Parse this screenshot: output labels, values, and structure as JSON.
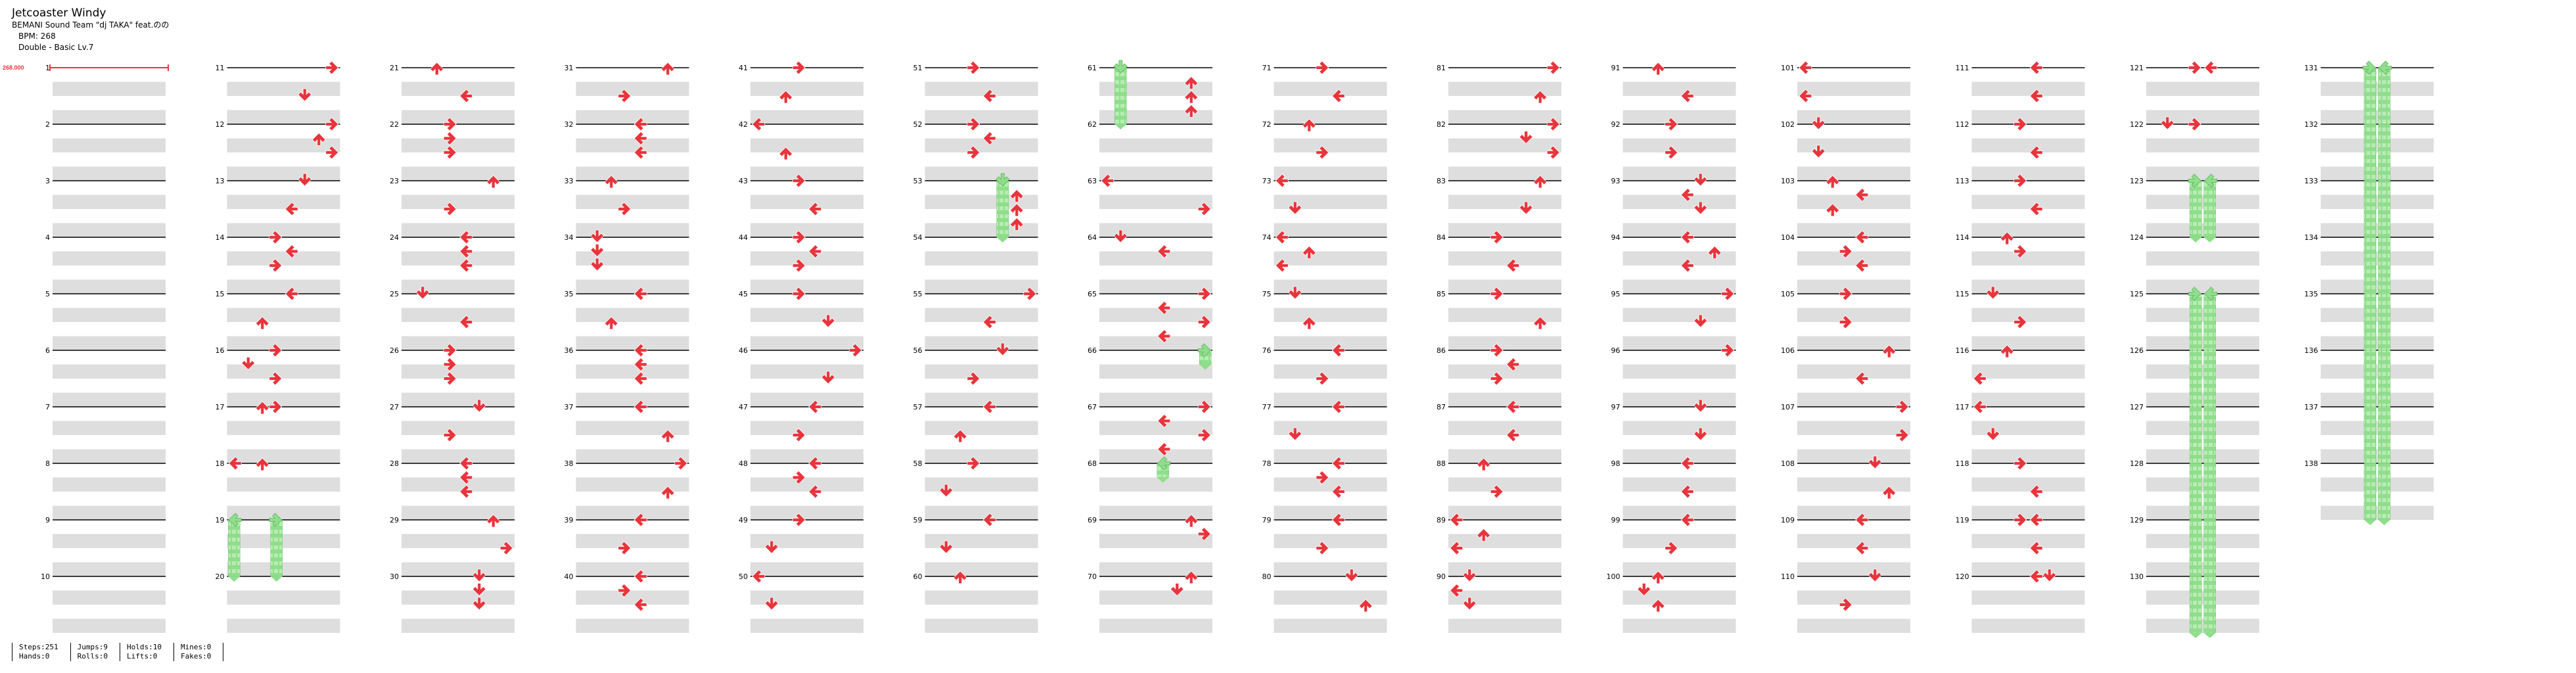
{
  "song": {
    "title": "Jetcoaster Windy",
    "artist": "BEMANI Sound Team \"dj TAKA\" feat.のの",
    "bpm_label": "BPM: 268",
    "difficulty": "Double - Basic  Lv.7"
  },
  "bpm_marker": "268.000",
  "stats": [
    {
      "lines": [
        "Steps:251",
        "Hands:0"
      ]
    },
    {
      "lines": [
        "Jumps:9",
        "Rolls:0"
      ]
    },
    {
      "lines": [
        "Holds:10",
        "Lifts:0"
      ]
    },
    {
      "lines": [
        "Mines:0",
        "Fakes:0"
      ]
    }
  ],
  "colors": {
    "arrow": "#e8343c",
    "hold": "#8fde8c",
    "measure_line": "#000000",
    "beat_band": "#dedede",
    "bpm_marker": "#e8343c"
  },
  "chart_data": {
    "type": "step-chart",
    "lanes": [
      "L1",
      "D1",
      "U1",
      "R1",
      "L2",
      "D2",
      "U2",
      "R2"
    ],
    "measure_count": 138,
    "highlighted_measure_numbers": [
      1,
      11,
      21,
      31,
      41,
      51,
      61,
      71,
      81,
      91,
      101,
      111,
      121,
      131
    ],
    "notes": [
      {
        "m": 11,
        "b": 0,
        "lane": "R2"
      },
      {
        "m": 11,
        "b": 2,
        "lane": "D2"
      },
      {
        "m": 12,
        "b": 0,
        "lane": "R2"
      },
      {
        "m": 12,
        "b": 1,
        "lane": "U2"
      },
      {
        "m": 12,
        "b": 2,
        "lane": "R2"
      },
      {
        "m": 13,
        "b": 0,
        "lane": "D2"
      },
      {
        "m": 13,
        "b": 2,
        "lane": "L2"
      },
      {
        "m": 14,
        "b": 0,
        "lane": "R1"
      },
      {
        "m": 14,
        "b": 1,
        "lane": "L2"
      },
      {
        "m": 14,
        "b": 2,
        "lane": "R1"
      },
      {
        "m": 15,
        "b": 0,
        "lane": "L2"
      },
      {
        "m": 15,
        "b": 2,
        "lane": "U1"
      },
      {
        "m": 16,
        "b": 0,
        "lane": "R1"
      },
      {
        "m": 16,
        "b": 1,
        "lane": "D1"
      },
      {
        "m": 16,
        "b": 2,
        "lane": "R1"
      },
      {
        "m": 17,
        "b": 0,
        "lane": "U1"
      },
      {
        "m": 17,
        "b": 0,
        "lane": "R1"
      },
      {
        "m": 18,
        "b": 0,
        "lane": "L1"
      },
      {
        "m": 18,
        "b": 0,
        "lane": "U1"
      },
      {
        "m": 19,
        "b": 0,
        "lane": "L1",
        "hold_beats": 4
      },
      {
        "m": 19,
        "b": 0,
        "lane": "R1",
        "hold_beats": 4
      },
      {
        "m": 21,
        "b": 0,
        "lane": "U1"
      },
      {
        "m": 21,
        "b": 2,
        "lane": "L2"
      },
      {
        "m": 22,
        "b": 0,
        "lane": "R1"
      },
      {
        "m": 22,
        "b": 1,
        "lane": "R1"
      },
      {
        "m": 22,
        "b": 2,
        "lane": "R1"
      },
      {
        "m": 23,
        "b": 0,
        "lane": "U2"
      },
      {
        "m": 23,
        "b": 2,
        "lane": "R1"
      },
      {
        "m": 24,
        "b": 0,
        "lane": "L2"
      },
      {
        "m": 24,
        "b": 1,
        "lane": "L2"
      },
      {
        "m": 24,
        "b": 2,
        "lane": "L2"
      },
      {
        "m": 25,
        "b": 0,
        "lane": "D1"
      },
      {
        "m": 25,
        "b": 2,
        "lane": "L2"
      },
      {
        "m": 26,
        "b": 0,
        "lane": "R1"
      },
      {
        "m": 26,
        "b": 1,
        "lane": "R1"
      },
      {
        "m": 26,
        "b": 2,
        "lane": "R1"
      },
      {
        "m": 27,
        "b": 0,
        "lane": "D2"
      },
      {
        "m": 27,
        "b": 2,
        "lane": "R1"
      },
      {
        "m": 28,
        "b": 0,
        "lane": "L2"
      },
      {
        "m": 28,
        "b": 1,
        "lane": "L2"
      },
      {
        "m": 28,
        "b": 2,
        "lane": "L2"
      },
      {
        "m": 29,
        "b": 0,
        "lane": "U2"
      },
      {
        "m": 29,
        "b": 2,
        "lane": "R2"
      },
      {
        "m": 30,
        "b": 0,
        "lane": "D2"
      },
      {
        "m": 30,
        "b": 1,
        "lane": "D2"
      },
      {
        "m": 30,
        "b": 2,
        "lane": "D2"
      },
      {
        "m": 31,
        "b": 0,
        "lane": "U2"
      },
      {
        "m": 31,
        "b": 2,
        "lane": "R1"
      },
      {
        "m": 32,
        "b": 0,
        "lane": "L2"
      },
      {
        "m": 32,
        "b": 1,
        "lane": "L2"
      },
      {
        "m": 32,
        "b": 2,
        "lane": "L2"
      },
      {
        "m": 33,
        "b": 0,
        "lane": "U1"
      },
      {
        "m": 33,
        "b": 2,
        "lane": "R1"
      },
      {
        "m": 34,
        "b": 0,
        "lane": "D1"
      },
      {
        "m": 34,
        "b": 1,
        "lane": "D1"
      },
      {
        "m": 34,
        "b": 2,
        "lane": "D1"
      },
      {
        "m": 35,
        "b": 0,
        "lane": "L2"
      },
      {
        "m": 35,
        "b": 2,
        "lane": "U1"
      },
      {
        "m": 36,
        "b": 0,
        "lane": "L2"
      },
      {
        "m": 36,
        "b": 1,
        "lane": "L2"
      },
      {
        "m": 36,
        "b": 2,
        "lane": "L2"
      },
      {
        "m": 37,
        "b": 0,
        "lane": "L2"
      },
      {
        "m": 37,
        "b": 2,
        "lane": "U2"
      },
      {
        "m": 38,
        "b": 0,
        "lane": "R2"
      },
      {
        "m": 38,
        "b": 2,
        "lane": "U2"
      },
      {
        "m": 39,
        "b": 0,
        "lane": "L2"
      },
      {
        "m": 39,
        "b": 2,
        "lane": "R1"
      },
      {
        "m": 40,
        "b": 0,
        "lane": "L2"
      },
      {
        "m": 40,
        "b": 1,
        "lane": "R1"
      },
      {
        "m": 40,
        "b": 2,
        "lane": "L2"
      },
      {
        "m": 41,
        "b": 0,
        "lane": "R1"
      },
      {
        "m": 41,
        "b": 2,
        "lane": "U1"
      },
      {
        "m": 42,
        "b": 0,
        "lane": "L1"
      },
      {
        "m": 42,
        "b": 2,
        "lane": "U1"
      },
      {
        "m": 43,
        "b": 0,
        "lane": "R1"
      },
      {
        "m": 43,
        "b": 2,
        "lane": "L2"
      },
      {
        "m": 44,
        "b": 0,
        "lane": "R1"
      },
      {
        "m": 44,
        "b": 1,
        "lane": "L2"
      },
      {
        "m": 44,
        "b": 2,
        "lane": "R1"
      },
      {
        "m": 45,
        "b": 0,
        "lane": "R1"
      },
      {
        "m": 45,
        "b": 2,
        "lane": "D2"
      },
      {
        "m": 46,
        "b": 0,
        "lane": "R2"
      },
      {
        "m": 46,
        "b": 2,
        "lane": "D2"
      },
      {
        "m": 47,
        "b": 0,
        "lane": "L2"
      },
      {
        "m": 47,
        "b": 2,
        "lane": "R1"
      },
      {
        "m": 48,
        "b": 0,
        "lane": "L2"
      },
      {
        "m": 48,
        "b": 1,
        "lane": "R1"
      },
      {
        "m": 48,
        "b": 2,
        "lane": "L2"
      },
      {
        "m": 49,
        "b": 0,
        "lane": "R1"
      },
      {
        "m": 49,
        "b": 2,
        "lane": "D1"
      },
      {
        "m": 50,
        "b": 0,
        "lane": "L1"
      },
      {
        "m": 50,
        "b": 2,
        "lane": "D1"
      },
      {
        "m": 51,
        "b": 0,
        "lane": "R1"
      },
      {
        "m": 51,
        "b": 2,
        "lane": "L2"
      },
      {
        "m": 52,
        "b": 0,
        "lane": "R1"
      },
      {
        "m": 52,
        "b": 1,
        "lane": "L2"
      },
      {
        "m": 52,
        "b": 2,
        "lane": "R1"
      },
      {
        "m": 53,
        "b": 0,
        "lane": "D2",
        "hold_beats": 4
      },
      {
        "m": 53,
        "b": 1,
        "lane": "U2"
      },
      {
        "m": 53,
        "b": 2,
        "lane": "U2"
      },
      {
        "m": 53,
        "b": 3,
        "lane": "U2"
      },
      {
        "m": 55,
        "b": 0,
        "lane": "R2"
      },
      {
        "m": 55,
        "b": 2,
        "lane": "L2"
      },
      {
        "m": 56,
        "b": 0,
        "lane": "D2"
      },
      {
        "m": 56,
        "b": 2,
        "lane": "R1"
      },
      {
        "m": 57,
        "b": 0,
        "lane": "L2"
      },
      {
        "m": 57,
        "b": 2,
        "lane": "U1"
      },
      {
        "m": 58,
        "b": 0,
        "lane": "R1"
      },
      {
        "m": 58,
        "b": 2,
        "lane": "D1"
      },
      {
        "m": 59,
        "b": 0,
        "lane": "L2"
      },
      {
        "m": 59,
        "b": 2,
        "lane": "D1"
      },
      {
        "m": 60,
        "b": 0,
        "lane": "U1"
      },
      {
        "m": 61,
        "b": 0,
        "lane": "D1",
        "hold_beats": 4
      },
      {
        "m": 61,
        "b": 1,
        "lane": "U2"
      },
      {
        "m": 61,
        "b": 2,
        "lane": "U2"
      },
      {
        "m": 61,
        "b": 3,
        "lane": "U2"
      },
      {
        "m": 63,
        "b": 0,
        "lane": "L1"
      },
      {
        "m": 63,
        "b": 2,
        "lane": "R2"
      },
      {
        "m": 64,
        "b": 0,
        "lane": "D1"
      },
      {
        "m": 64,
        "b": 1,
        "lane": "L2"
      },
      {
        "m": 65,
        "b": 0,
        "lane": "R2"
      },
      {
        "m": 65,
        "b": 1,
        "lane": "L2"
      },
      {
        "m": 65,
        "b": 2,
        "lane": "R2"
      },
      {
        "m": 65,
        "b": 3,
        "lane": "L2"
      },
      {
        "m": 66,
        "b": 0,
        "lane": "R2",
        "hold_beats": 1
      },
      {
        "m": 67,
        "b": 0,
        "lane": "R2"
      },
      {
        "m": 67,
        "b": 1,
        "lane": "L2"
      },
      {
        "m": 67,
        "b": 2,
        "lane": "R2"
      },
      {
        "m": 67,
        "b": 3,
        "lane": "L2"
      },
      {
        "m": 68,
        "b": 0,
        "lane": "L2",
        "hold_beats": 1
      },
      {
        "m": 69,
        "b": 0,
        "lane": "U2"
      },
      {
        "m": 69,
        "b": 1,
        "lane": "R2"
      },
      {
        "m": 70,
        "b": 0,
        "lane": "U2"
      },
      {
        "m": 70,
        "b": 1,
        "lane": "D2"
      },
      {
        "m": 71,
        "b": 0,
        "lane": "R1"
      },
      {
        "m": 71,
        "b": 2,
        "lane": "L2"
      },
      {
        "m": 72,
        "b": 0,
        "lane": "U1"
      },
      {
        "m": 72,
        "b": 2,
        "lane": "R1"
      },
      {
        "m": 73,
        "b": 0,
        "lane": "L1"
      },
      {
        "m": 73,
        "b": 2,
        "lane": "D1"
      },
      {
        "m": 74,
        "b": 0,
        "lane": "L1"
      },
      {
        "m": 74,
        "b": 1,
        "lane": "U1"
      },
      {
        "m": 74,
        "b": 2,
        "lane": "L1"
      },
      {
        "m": 75,
        "b": 0,
        "lane": "D1"
      },
      {
        "m": 75,
        "b": 2,
        "lane": "U1"
      },
      {
        "m": 76,
        "b": 0,
        "lane": "L2"
      },
      {
        "m": 76,
        "b": 2,
        "lane": "R1"
      },
      {
        "m": 77,
        "b": 0,
        "lane": "L2"
      },
      {
        "m": 77,
        "b": 2,
        "lane": "D1"
      },
      {
        "m": 78,
        "b": 0,
        "lane": "L2"
      },
      {
        "m": 78,
        "b": 1,
        "lane": "R1"
      },
      {
        "m": 78,
        "b": 2,
        "lane": "L2"
      },
      {
        "m": 79,
        "b": 0,
        "lane": "L2"
      },
      {
        "m": 79,
        "b": 2,
        "lane": "R1"
      },
      {
        "m": 80,
        "b": 0,
        "lane": "D2"
      },
      {
        "m": 80,
        "b": 2,
        "lane": "U2"
      },
      {
        "m": 81,
        "b": 0,
        "lane": "R2"
      },
      {
        "m": 81,
        "b": 2,
        "lane": "U2"
      },
      {
        "m": 82,
        "b": 0,
        "lane": "R2"
      },
      {
        "m": 82,
        "b": 1,
        "lane": "D2"
      },
      {
        "m": 82,
        "b": 2,
        "lane": "R2"
      },
      {
        "m": 83,
        "b": 0,
        "lane": "U2"
      },
      {
        "m": 83,
        "b": 2,
        "lane": "D2"
      },
      {
        "m": 84,
        "b": 0,
        "lane": "R1"
      },
      {
        "m": 84,
        "b": 2,
        "lane": "L2"
      },
      {
        "m": 85,
        "b": 0,
        "lane": "R1"
      },
      {
        "m": 85,
        "b": 2,
        "lane": "U2"
      },
      {
        "m": 86,
        "b": 0,
        "lane": "R1"
      },
      {
        "m": 86,
        "b": 1,
        "lane": "L2"
      },
      {
        "m": 86,
        "b": 2,
        "lane": "R1"
      },
      {
        "m": 87,
        "b": 0,
        "lane": "L2"
      },
      {
        "m": 87,
        "b": 2,
        "lane": "L2"
      },
      {
        "m": 88,
        "b": 0,
        "lane": "U1"
      },
      {
        "m": 88,
        "b": 2,
        "lane": "R1"
      },
      {
        "m": 89,
        "b": 0,
        "lane": "L1"
      },
      {
        "m": 89,
        "b": 1,
        "lane": "U1"
      },
      {
        "m": 89,
        "b": 2,
        "lane": "L1"
      },
      {
        "m": 90,
        "b": 0,
        "lane": "D1"
      },
      {
        "m": 90,
        "b": 1,
        "lane": "L1"
      },
      {
        "m": 90,
        "b": 2,
        "lane": "D1"
      },
      {
        "m": 91,
        "b": 0,
        "lane": "U1"
      },
      {
        "m": 91,
        "b": 2,
        "lane": "L2"
      },
      {
        "m": 92,
        "b": 0,
        "lane": "R1"
      },
      {
        "m": 92,
        "b": 2,
        "lane": "R1"
      },
      {
        "m": 93,
        "b": 0,
        "lane": "D2"
      },
      {
        "m": 93,
        "b": 1,
        "lane": "L2"
      },
      {
        "m": 93,
        "b": 2,
        "lane": "D2"
      },
      {
        "m": 94,
        "b": 0,
        "lane": "L2"
      },
      {
        "m": 94,
        "b": 1,
        "lane": "U2"
      },
      {
        "m": 94,
        "b": 2,
        "lane": "L2"
      },
      {
        "m": 95,
        "b": 0,
        "lane": "R2"
      },
      {
        "m": 95,
        "b": 2,
        "lane": "D2"
      },
      {
        "m": 96,
        "b": 0,
        "lane": "R2"
      },
      {
        "m": 97,
        "b": 0,
        "lane": "D2"
      },
      {
        "m": 97,
        "b": 2,
        "lane": "D2"
      },
      {
        "m": 98,
        "b": 0,
        "lane": "L2"
      },
      {
        "m": 98,
        "b": 2,
        "lane": "L2"
      },
      {
        "m": 99,
        "b": 0,
        "lane": "L2"
      },
      {
        "m": 99,
        "b": 2,
        "lane": "R1"
      },
      {
        "m": 100,
        "b": 0,
        "lane": "U1"
      },
      {
        "m": 100,
        "b": 1,
        "lane": "D1"
      },
      {
        "m": 100,
        "b": 2,
        "lane": "U1"
      },
      {
        "m": 101,
        "b": 0,
        "lane": "L1"
      },
      {
        "m": 101,
        "b": 2,
        "lane": "L1"
      },
      {
        "m": 102,
        "b": 0,
        "lane": "D1"
      },
      {
        "m": 102,
        "b": 2,
        "lane": "D1"
      },
      {
        "m": 103,
        "b": 0,
        "lane": "U1"
      },
      {
        "m": 103,
        "b": 1,
        "lane": "L2"
      },
      {
        "m": 103,
        "b": 2,
        "lane": "U1"
      },
      {
        "m": 104,
        "b": 0,
        "lane": "L2"
      },
      {
        "m": 104,
        "b": 1,
        "lane": "R1"
      },
      {
        "m": 104,
        "b": 2,
        "lane": "L2"
      },
      {
        "m": 105,
        "b": 0,
        "lane": "R1"
      },
      {
        "m": 105,
        "b": 2,
        "lane": "R1"
      },
      {
        "m": 106,
        "b": 0,
        "lane": "U2"
      },
      {
        "m": 106,
        "b": 2,
        "lane": "L2"
      },
      {
        "m": 107,
        "b": 0,
        "lane": "R2"
      },
      {
        "m": 107,
        "b": 2,
        "lane": "R2"
      },
      {
        "m": 108,
        "b": 0,
        "lane": "D2"
      },
      {
        "m": 108,
        "b": 2,
        "lane": "U2"
      },
      {
        "m": 109,
        "b": 0,
        "lane": "L2"
      },
      {
        "m": 109,
        "b": 2,
        "lane": "L2"
      },
      {
        "m": 110,
        "b": 0,
        "lane": "D2"
      },
      {
        "m": 110,
        "b": 2,
        "lane": "R1"
      },
      {
        "m": 111,
        "b": 0,
        "lane": "L2"
      },
      {
        "m": 111,
        "b": 2,
        "lane": "L2"
      },
      {
        "m": 112,
        "b": 0,
        "lane": "R1"
      },
      {
        "m": 112,
        "b": 2,
        "lane": "L2"
      },
      {
        "m": 113,
        "b": 0,
        "lane": "R1"
      },
      {
        "m": 113,
        "b": 2,
        "lane": "L2"
      },
      {
        "m": 114,
        "b": 0,
        "lane": "U1"
      },
      {
        "m": 114,
        "b": 1,
        "lane": "R1"
      },
      {
        "m": 115,
        "b": 0,
        "lane": "D1"
      },
      {
        "m": 115,
        "b": 2,
        "lane": "R1"
      },
      {
        "m": 116,
        "b": 0,
        "lane": "U1"
      },
      {
        "m": 116,
        "b": 2,
        "lane": "L1"
      },
      {
        "m": 117,
        "b": 0,
        "lane": "L1"
      },
      {
        "m": 117,
        "b": 2,
        "lane": "D1"
      },
      {
        "m": 118,
        "b": 0,
        "lane": "R1"
      },
      {
        "m": 118,
        "b": 2,
        "lane": "L2"
      },
      {
        "m": 119,
        "b": 0,
        "lane": "R1"
      },
      {
        "m": 119,
        "b": 0,
        "lane": "L2"
      },
      {
        "m": 119,
        "b": 2,
        "lane": "L2"
      },
      {
        "m": 120,
        "b": 0,
        "lane": "L2"
      },
      {
        "m": 120,
        "b": 0,
        "lane": "D2"
      },
      {
        "m": 121,
        "b": 0,
        "lane": "R1"
      },
      {
        "m": 121,
        "b": 0,
        "lane": "L2"
      },
      {
        "m": 122,
        "b": 0,
        "lane": "D1"
      },
      {
        "m": 122,
        "b": 0,
        "lane": "R1"
      },
      {
        "m": 123,
        "b": 0,
        "lane": "R1",
        "hold_beats": 4
      },
      {
        "m": 123,
        "b": 0,
        "lane": "L2",
        "hold_beats": 4
      },
      {
        "m": 125,
        "b": 0,
        "lane": "R1",
        "hold_beats": 24
      },
      {
        "m": 125,
        "b": 0,
        "lane": "L2",
        "hold_beats": 24
      },
      {
        "m": 131,
        "b": 0,
        "lane": "R1",
        "hold_beats": 32
      },
      {
        "m": 131,
        "b": 0,
        "lane": "L2",
        "hold_beats": 32
      }
    ]
  }
}
